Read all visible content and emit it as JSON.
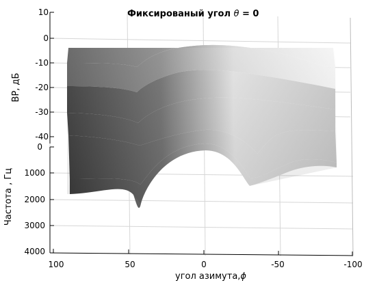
{
  "chart_data": {
    "type": "surface",
    "title_bold": "Фиксированый угол ",
    "title_symbol": "θ",
    "title_tail": " = 0",
    "zlabel": "ВР, дБ",
    "ylabel": "Частота , Гц",
    "xlabel": "угол азимута,",
    "xlabel_symbol": "ϕ",
    "z_ticks": [
      "10",
      "0",
      "-10",
      "-20",
      "-30",
      "-40"
    ],
    "y_ticks": [
      "0",
      "1000",
      "2000",
      "3000",
      "4000"
    ],
    "x_ticks": [
      "100",
      "50",
      "0",
      "-50",
      "-100"
    ],
    "zlim": [
      -45,
      10
    ],
    "ylim": [
      0,
      4000
    ],
    "xlim": [
      100,
      -100
    ],
    "grid": true,
    "colormap": "gray",
    "surface_rows": [
      {
        "frequency": 0,
        "points": [
          [
            90,
            -5
          ],
          [
            60,
            -6
          ],
          [
            44,
            -7
          ],
          [
            20,
            -6
          ],
          [
            0,
            -4
          ],
          [
            -30,
            -3
          ],
          [
            -60,
            -3
          ],
          [
            -88,
            -4
          ]
        ]
      },
      {
        "frequency": 300,
        "points": [
          [
            90,
            -16
          ],
          [
            60,
            -18
          ],
          [
            44,
            -22
          ],
          [
            30,
            -15
          ],
          [
            0,
            -8
          ],
          [
            -30,
            -9
          ],
          [
            -60,
            -10
          ],
          [
            -88,
            -11
          ]
        ]
      },
      {
        "frequency": 650,
        "points": [
          [
            90,
            -25
          ],
          [
            60,
            -27
          ],
          [
            44,
            -32
          ],
          [
            32,
            -24
          ],
          [
            0,
            -13
          ],
          [
            -30,
            -18
          ],
          [
            -60,
            -20
          ],
          [
            -88,
            -22
          ]
        ]
      },
      {
        "frequency": 1000,
        "points": [
          [
            90,
            -33
          ],
          [
            60,
            -35
          ],
          [
            44,
            -42
          ],
          [
            34,
            -33
          ],
          [
            0,
            -21
          ],
          [
            -28,
            -33
          ],
          [
            -45,
            -31
          ],
          [
            -60,
            -30
          ],
          [
            -88,
            -32
          ]
        ]
      },
      {
        "frequency": 1300,
        "points": [
          [
            90,
            -38
          ],
          [
            55,
            -40
          ],
          [
            44,
            -45
          ],
          [
            34,
            -40
          ],
          [
            0,
            -25
          ],
          [
            -25,
            -38
          ],
          [
            -45,
            -40
          ],
          [
            -58,
            -42
          ],
          [
            -88,
            -40
          ]
        ]
      },
      {
        "frequency": 1650,
        "points": [
          [
            90,
            -42
          ],
          [
            60,
            -45
          ],
          [
            45,
            -58
          ],
          [
            36,
            -46
          ],
          [
            0,
            -30
          ],
          [
            -30,
            -45
          ],
          [
            -55,
            -43
          ],
          [
            -88,
            -44
          ]
        ]
      }
    ]
  }
}
